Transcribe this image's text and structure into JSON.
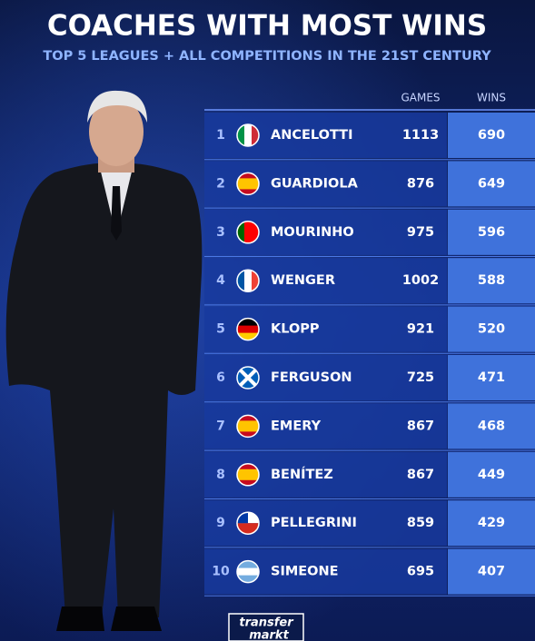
{
  "header": {
    "title": "COACHES WITH MOST WINS",
    "subtitle": "TOP 5 LEAGUES + ALL COMPETITIONS IN THE 21ST CENTURY"
  },
  "table": {
    "columns": [
      "GAMES",
      "WINS"
    ],
    "rows": [
      [
        1,
        "ANCELOTTI",
        1113,
        690
      ],
      [
        2,
        "GUARDIOLA",
        876,
        649
      ],
      [
        3,
        "MOURINHO",
        975,
        596
      ],
      [
        4,
        "WENGER",
        1002,
        588
      ],
      [
        5,
        "KLOPP",
        921,
        520
      ],
      [
        6,
        "FERGUSON",
        725,
        471
      ],
      [
        7,
        "EMERY",
        867,
        468
      ],
      [
        8,
        "BENÍTEZ",
        867,
        449
      ],
      [
        9,
        "PELLEGRINI",
        859,
        429
      ],
      [
        10,
        "SIMEONE",
        695,
        407
      ]
    ]
  },
  "logo": [
    "transfer",
    "markt"
  ]
}
